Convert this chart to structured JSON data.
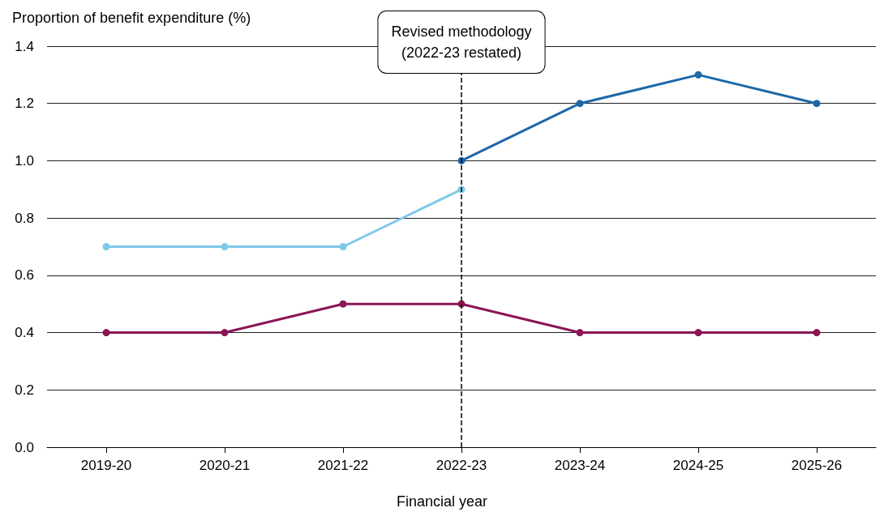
{
  "chart_data": {
    "type": "line",
    "ylabel": "Proportion of benefit expenditure (%)",
    "xlabel": "Financial year",
    "categories": [
      "2019-20",
      "2020-21",
      "2021-22",
      "2022-23",
      "2023-24",
      "2024-25",
      "2025-26"
    ],
    "series": [
      {
        "color": "#7fc8e8",
        "values": [
          0.7,
          0.7,
          0.7,
          0.9,
          null,
          null,
          null
        ]
      },
      {
        "color": "#1d68a8",
        "values": [
          null,
          null,
          null,
          1.0,
          1.2,
          1.3,
          1.2
        ]
      },
      {
        "color": "#8c1656",
        "values": [
          0.4,
          0.4,
          0.5,
          0.5,
          0.4,
          0.4,
          0.4
        ]
      }
    ],
    "ylim": [
      0,
      1.4
    ],
    "yticks": [
      {
        "value": 0,
        "label": "0.0"
      },
      {
        "value": 0.2,
        "label": "0.2"
      },
      {
        "value": 0.4,
        "label": "0.4"
      },
      {
        "value": 0.6,
        "label": "0.6"
      },
      {
        "value": 0.8,
        "label": "0.8"
      },
      {
        "value": 1,
        "label": "1.0"
      },
      {
        "value": 1.2,
        "label": "1.2"
      },
      {
        "value": 1.4,
        "label": "1.4"
      }
    ],
    "grid": "y",
    "marker": "circle",
    "line_style": "solid",
    "ref_lines": [
      {
        "axis": "x",
        "value": "2022-23",
        "label": "Revised methodology\n(2022-23 restated)",
        "color": "#000000",
        "line_style": "dashed"
      }
    ]
  }
}
